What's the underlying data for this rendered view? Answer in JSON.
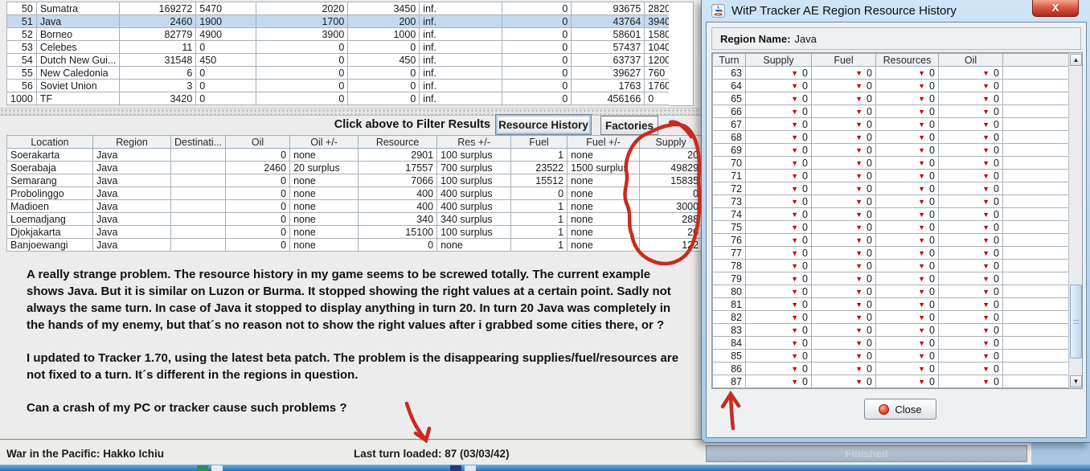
{
  "top_table": {
    "selected_index": 1,
    "rows": [
      [
        "50",
        "Sumatra",
        "169272",
        "5470",
        "2020",
        "3450",
        "inf.",
        "0",
        "93675",
        "2820"
      ],
      [
        "51",
        "Java",
        "2460",
        "1900",
        "1700",
        "200",
        "inf.",
        "0",
        "43764",
        "3940"
      ],
      [
        "52",
        "Borneo",
        "82779",
        "4900",
        "3900",
        "1000",
        "inf.",
        "0",
        "58601",
        "1580"
      ],
      [
        "53",
        "Celebes",
        "11",
        "0",
        "0",
        "0",
        "inf.",
        "0",
        "57437",
        "1040"
      ],
      [
        "54",
        "Dutch New Gui...",
        "31548",
        "450",
        "0",
        "450",
        "inf.",
        "0",
        "63737",
        "1200"
      ],
      [
        "55",
        "New Caledonia",
        "6",
        "0",
        "0",
        "0",
        "inf.",
        "0",
        "39627",
        "760"
      ],
      [
        "56",
        "Soviet Union",
        "3",
        "0",
        "0",
        "0",
        "inf.",
        "0",
        "1763",
        "1760"
      ],
      [
        "1000",
        "TF",
        "3420",
        "0",
        "0",
        "0",
        "inf.",
        "0",
        "456166",
        "0"
      ]
    ]
  },
  "filter": {
    "hint": "Click above to Filter Results",
    "tabs": [
      "Resource History",
      "Factories"
    ]
  },
  "loc_table": {
    "headers": [
      "Location",
      "Region",
      "Destinati...",
      "Oil",
      "Oil +/-",
      "Resource",
      "Res +/-",
      "Fuel",
      "Fuel +/-",
      "Supply"
    ],
    "rows": [
      [
        "Soerakarta",
        "Java",
        "",
        "0",
        "none",
        "2901",
        "100 surplus",
        "1",
        "none",
        "20"
      ],
      [
        "Soerabaja",
        "Java",
        "",
        "2460",
        "20 surplus",
        "17557",
        "700 surplus",
        "23522",
        "1500 surplus",
        "49829"
      ],
      [
        "Semarang",
        "Java",
        "",
        "0",
        "none",
        "7066",
        "100 surplus",
        "15512",
        "none",
        "15835"
      ],
      [
        "Probolinggo",
        "Java",
        "",
        "0",
        "none",
        "400",
        "400 surplus",
        "0",
        "none",
        "0"
      ],
      [
        "Madioen",
        "Java",
        "",
        "0",
        "none",
        "400",
        "400 surplus",
        "1",
        "none",
        "3000"
      ],
      [
        "Loemadjang",
        "Java",
        "",
        "0",
        "none",
        "340",
        "340 surplus",
        "1",
        "none",
        "288"
      ],
      [
        "Djokjakarta",
        "Java",
        "",
        "0",
        "none",
        "15100",
        "100 surplus",
        "1",
        "none",
        "20"
      ],
      [
        "Banjoewangi",
        "Java",
        "",
        "0",
        "none",
        "0",
        "none",
        "1",
        "none",
        "122"
      ]
    ]
  },
  "notes": {
    "p1": "A really strange problem. The resource history in my game seems to be screwed totally. The current example shows Java. But it is similar on Luzon or Burma. It stopped showing the right values at a certain point. Sadly not always the same turn. In case of Java it stopped to display anything in turn 20. In turn 20 Java was completely in the hands of my enemy, but that´s no reason not to show the right values after i grabbed some cities there, or ?",
    "p2": "I updated to Tracker 1.70, using the latest beta patch. The problem is the disappearing supplies/fuel/resources are not fixed to a turn. It´s different in the regions in question.",
    "p3": "Can a crash of my PC or tracker cause such problems ?"
  },
  "status": {
    "left": "War in the Pacific: Hakko Ichiu",
    "right": "Last turn loaded: 87 (03/03/42)",
    "progress": "Finished"
  },
  "dialog": {
    "title": "WitP Tracker AE Region Resource History",
    "close_x": "X",
    "region_label": "Region Name:",
    "region_name": "Java",
    "headers": [
      "Turn",
      "Supply",
      "Fuel",
      "Resources",
      "Oil"
    ],
    "turns": [
      63,
      64,
      65,
      66,
      67,
      68,
      69,
      70,
      71,
      72,
      73,
      74,
      75,
      76,
      77,
      78,
      79,
      80,
      81,
      82,
      83,
      84,
      85,
      86,
      87
    ],
    "zero": "0",
    "decrease_glyph": "▼",
    "close_label": "Close",
    "scroll_up": "▲",
    "scroll_down": "▼"
  },
  "colors": {
    "annotation": "#c92a1f",
    "selection": "#c6d9ec",
    "decrease": "#c40000"
  }
}
